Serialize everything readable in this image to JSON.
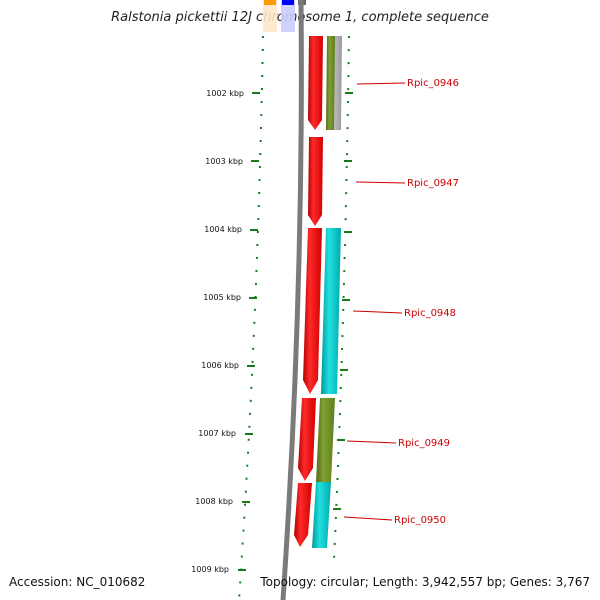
{
  "title": "Ralstonia pickettii 12J chromosome 1, complete sequence",
  "accession": "Accession: NC_010682",
  "summary": "Topology: circular; Length: 3,942,557 bp; Genes: 3,767",
  "colors": {
    "backbone": "#808080",
    "cds": "#ff0000",
    "cog_olive": "#6b8e23",
    "cog_cyan": "#00cccc",
    "cog_gray": "#999999",
    "tick": "#006400",
    "label": "#cc0000"
  },
  "ticks": [
    "1002 kbp",
    "1003 kbp",
    "1004 kbp",
    "1005 kbp",
    "1006 kbp",
    "1007 kbp",
    "1008 kbp",
    "1009 kbp"
  ],
  "genes": [
    {
      "name": "Rpic_0946",
      "cog": "gray"
    },
    {
      "name": "Rpic_0947",
      "cog": "none"
    },
    {
      "name": "Rpic_0948",
      "cog": "cyan"
    },
    {
      "name": "Rpic_0949",
      "cog": "olive"
    },
    {
      "name": "Rpic_0950",
      "cog": "cyan"
    }
  ]
}
